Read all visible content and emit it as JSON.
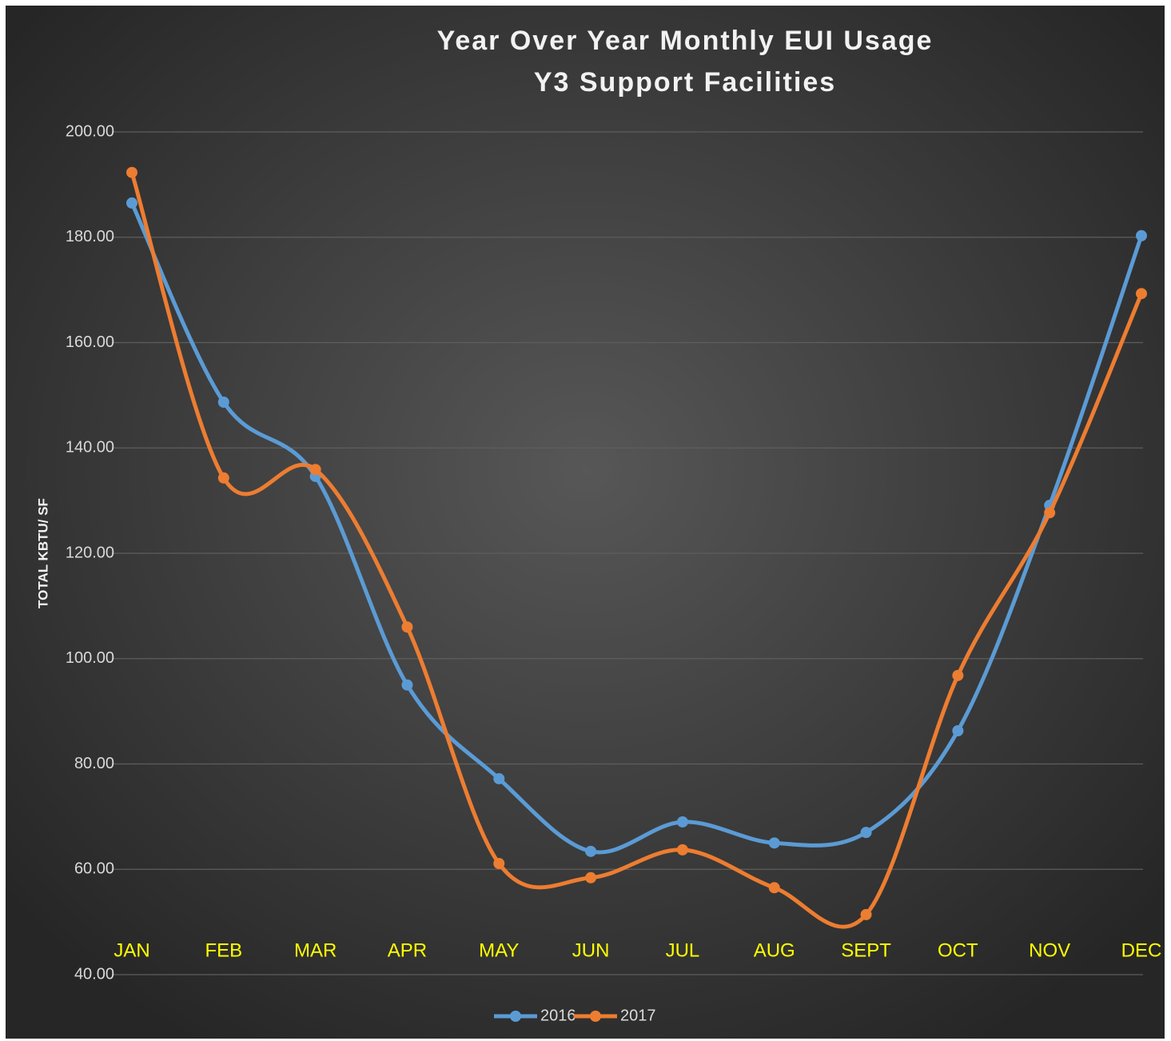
{
  "chart_data": {
    "type": "line",
    "title": "Year Over Year Monthly EUI Usage",
    "subtitle": "Y3 Support Facilities",
    "y_label": "TOTAL KBTU/ SF",
    "categories": [
      "JAN",
      "FEB",
      "MAR",
      "APR",
      "MAY",
      "JUN",
      "JUL",
      "AUG",
      "SEPT",
      "OCT",
      "NOV",
      "DEC"
    ],
    "series": [
      {
        "name": "2016",
        "color": "#5b9bd5",
        "values": [
          186.5,
          148.7,
          134.6,
          95,
          77.2,
          63.4,
          69,
          65,
          67,
          86.3,
          129.1,
          180.3
        ]
      },
      {
        "name": "2017",
        "color": "#ed7d31",
        "values": [
          192.3,
          134.3,
          135.9,
          106,
          61.1,
          58.4,
          63.7,
          56.5,
          51.4,
          96.8,
          127.7,
          169.3
        ]
      }
    ],
    "ylim": [
      40,
      200
    ],
    "yticks": [
      {
        "value": 40,
        "label": "40.00"
      },
      {
        "value": 60,
        "label": "60.00"
      },
      {
        "value": 80,
        "label": "80.00"
      },
      {
        "value": 100,
        "label": "100.00"
      },
      {
        "value": 120,
        "label": "120.00"
      },
      {
        "value": 140,
        "label": "140.00"
      },
      {
        "value": 160,
        "label": "160.00"
      },
      {
        "value": 180,
        "label": "180.00"
      },
      {
        "value": 200,
        "label": "200.00"
      }
    ],
    "grid": true,
    "smooth": true,
    "legend": "bottom"
  }
}
